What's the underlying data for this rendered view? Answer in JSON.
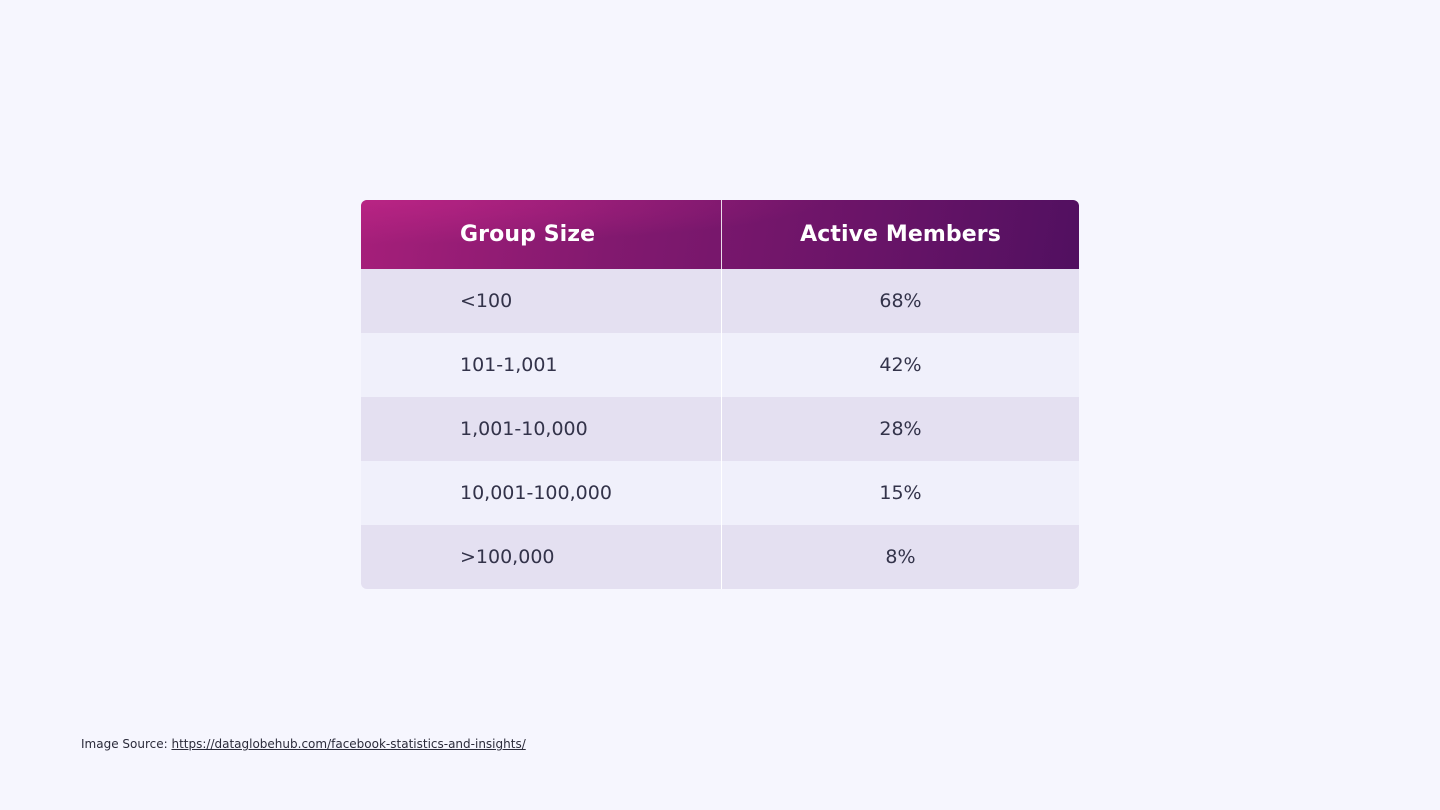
{
  "chart_data": {
    "type": "table",
    "columns": [
      "Group Size",
      "Active Members"
    ],
    "rows": [
      {
        "group_size": "<100",
        "active_members": "68%"
      },
      {
        "group_size": "101-1,001",
        "active_members": "42%"
      },
      {
        "group_size": "1,001-10,000",
        "active_members": "28%"
      },
      {
        "group_size": "10,001-100,000",
        "active_members": "15%"
      },
      {
        "group_size": ">100,000",
        "active_members": "8%"
      }
    ]
  },
  "colors": {
    "header_start": "#a61f7a",
    "header_end": "#511060",
    "row_odd": "#e4e0f1",
    "row_even": "#f0f0fb",
    "background": "#f6f6fe"
  },
  "source": {
    "label": "Image Source: ",
    "link_text": "https://dataglobehub.com/facebook-statistics-and-insights/"
  }
}
